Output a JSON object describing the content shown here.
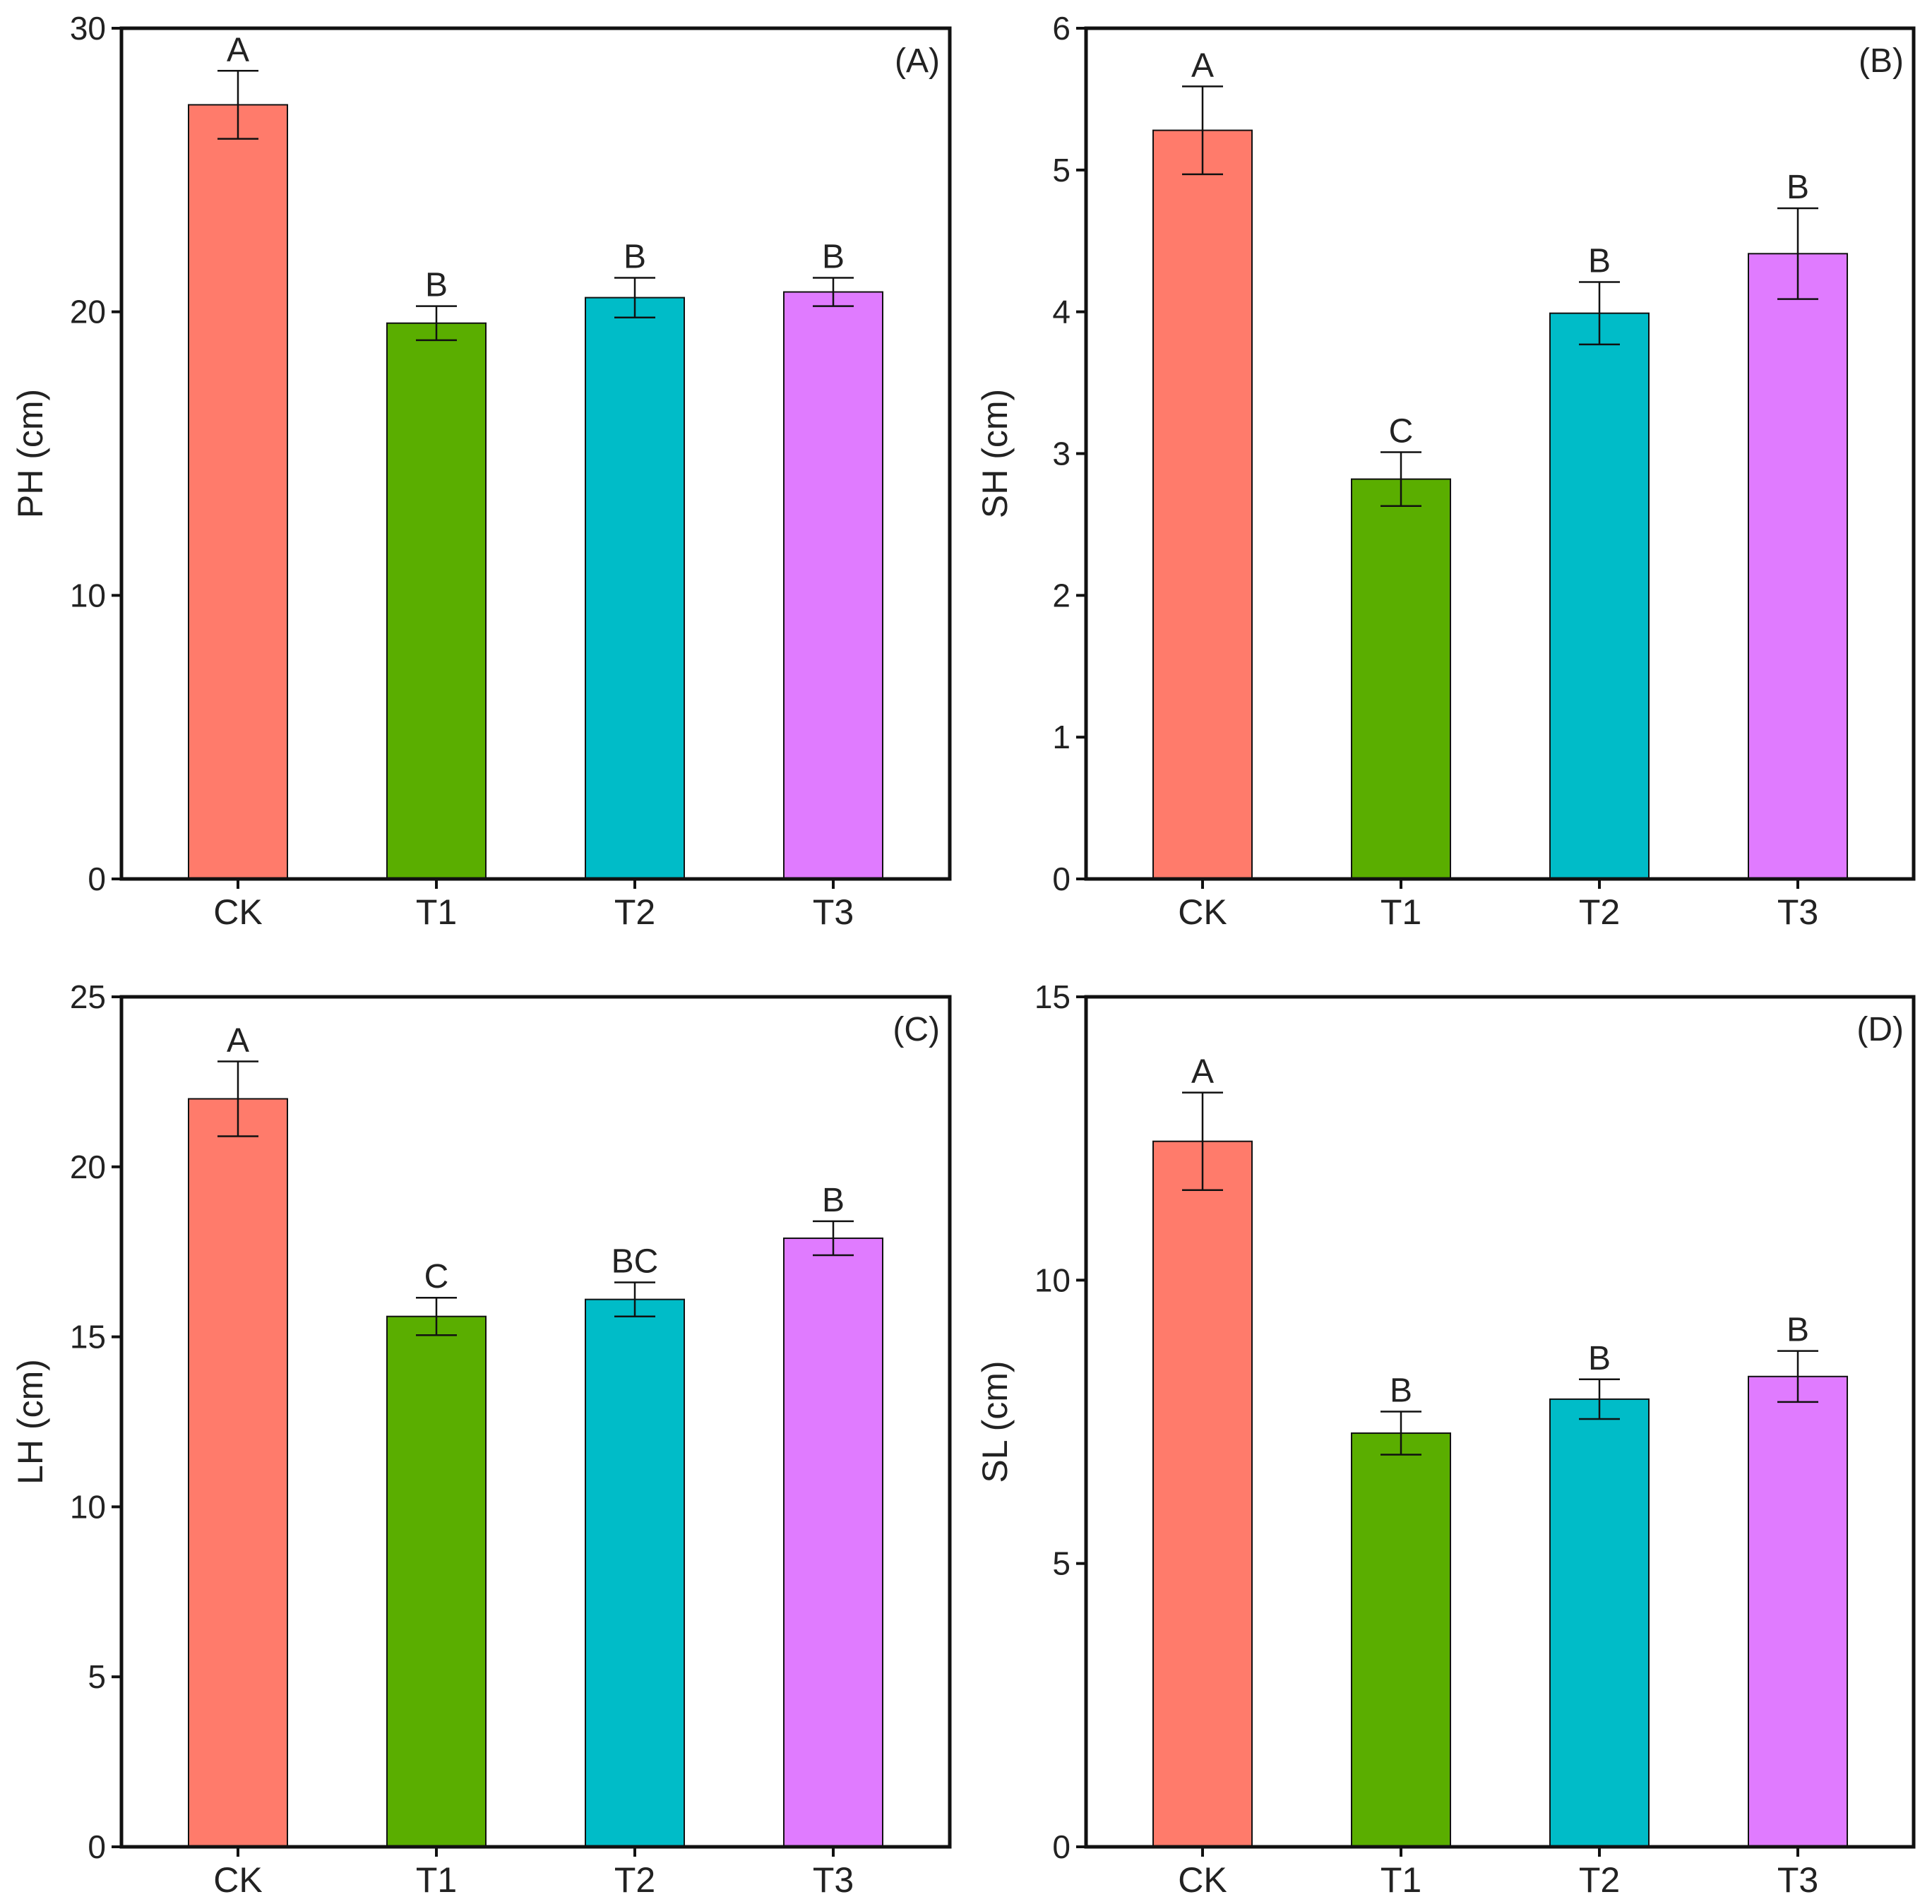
{
  "chart_data": [
    {
      "type": "bar",
      "panel": "(A)",
      "categories": [
        "CK",
        "T1",
        "T2",
        "T3"
      ],
      "values": [
        27.3,
        19.6,
        20.5,
        20.7
      ],
      "errors": [
        1.2,
        0.6,
        0.7,
        0.5
      ],
      "significance": [
        "A",
        "B",
        "B",
        "B"
      ],
      "colors": [
        "#FF7B6B",
        "#5AAE00",
        "#00BCC8",
        "#E07BFF"
      ],
      "ylabel": "PH (cm)",
      "xlabel": "",
      "ylim": [
        0,
        30
      ],
      "yticks": [
        0,
        10,
        20,
        30
      ],
      "ytick_labels": [
        "0",
        "10",
        "20",
        "30"
      ]
    },
    {
      "type": "bar",
      "panel": "(B)",
      "categories": [
        "CK",
        "T1",
        "T2",
        "T3"
      ],
      "values": [
        5.28,
        2.82,
        3.99,
        4.41
      ],
      "errors": [
        0.31,
        0.19,
        0.22,
        0.32
      ],
      "significance": [
        "A",
        "C",
        "B",
        "B"
      ],
      "colors": [
        "#FF7B6B",
        "#5AAE00",
        "#00BCC8",
        "#E07BFF"
      ],
      "ylabel": "SH (cm)",
      "xlabel": "",
      "ylim": [
        0,
        6
      ],
      "yticks": [
        0,
        1,
        2,
        3,
        4,
        5,
        6
      ],
      "ytick_labels": [
        "0",
        "1",
        "2",
        "3",
        "4",
        "5",
        "6"
      ]
    },
    {
      "type": "bar",
      "panel": "(C)",
      "categories": [
        "CK",
        "T1",
        "T2",
        "T3"
      ],
      "values": [
        22.0,
        15.6,
        16.1,
        17.9
      ],
      "errors": [
        1.1,
        0.55,
        0.5,
        0.5
      ],
      "significance": [
        "A",
        "C",
        "BC",
        "B"
      ],
      "colors": [
        "#FF7B6B",
        "#5AAE00",
        "#00BCC8",
        "#E07BFF"
      ],
      "ylabel": "LH (cm)",
      "xlabel": "",
      "ylim": [
        0,
        25
      ],
      "yticks": [
        0,
        5,
        10,
        15,
        20,
        25
      ],
      "ytick_labels": [
        "0",
        "5",
        "10",
        "15",
        "20",
        "25"
      ]
    },
    {
      "type": "bar",
      "panel": "(D)",
      "categories": [
        "CK",
        "T1",
        "T2",
        "T3"
      ],
      "values": [
        12.45,
        7.3,
        7.9,
        8.3
      ],
      "errors": [
        0.86,
        0.38,
        0.35,
        0.45
      ],
      "significance": [
        "A",
        "B",
        "B",
        "B"
      ],
      "colors": [
        "#FF7B6B",
        "#5AAE00",
        "#00BCC8",
        "#E07BFF"
      ],
      "ylabel": "SL (cm)",
      "xlabel": "",
      "ylim": [
        0,
        15
      ],
      "yticks": [
        0,
        5,
        10,
        15
      ],
      "ytick_labels": [
        "0",
        "5",
        "10",
        "15"
      ]
    }
  ]
}
